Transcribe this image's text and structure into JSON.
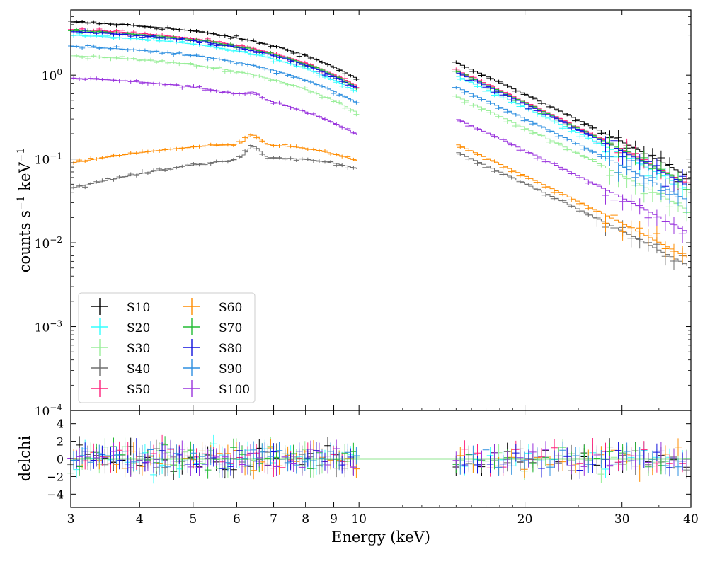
{
  "chart_data": {
    "type": "line",
    "title": "",
    "xlabel": "Energy (keV)",
    "ylabel_top": "counts s^{-1} keV^{-1}",
    "ylabel_bottom": "delchi",
    "xscale": "log",
    "xlim": [
      3,
      40
    ],
    "ylim_top": [
      0.0001,
      6
    ],
    "ylim_bottom": [
      -5.5,
      5.5
    ],
    "x_ticks": [
      3,
      4,
      5,
      6,
      7,
      8,
      9,
      10,
      20,
      30,
      40
    ],
    "x_tick_labels": [
      "3",
      "4",
      "5",
      "6",
      "7",
      "8",
      "9",
      "10",
      "20",
      "30",
      "40"
    ],
    "y_ticks_top": [
      {
        "value": 0.0001,
        "base": "10",
        "exp": "−4"
      },
      {
        "value": 0.001,
        "base": "10",
        "exp": "−3"
      },
      {
        "value": 0.01,
        "base": "10",
        "exp": "−2"
      },
      {
        "value": 0.1,
        "base": "10",
        "exp": "−1"
      },
      {
        "value": 1,
        "base": "10",
        "exp": "0"
      }
    ],
    "y_ticks_bottom": [
      {
        "value": 4,
        "label": "4"
      },
      {
        "value": 2,
        "label": "2"
      },
      {
        "value": 0,
        "label": "0"
      },
      {
        "value": -2,
        "label": "−2"
      },
      {
        "value": -4,
        "label": "−4"
      }
    ],
    "gap_keV": [
      10,
      15
    ],
    "model_line_color": "#22cc22",
    "legend": {
      "placement": "lower-left",
      "columns": 2
    },
    "series": [
      {
        "name": "S10",
        "color": "#000000",
        "norm_low": 4.3,
        "feat": 0.0,
        "iron": 0.0
      },
      {
        "name": "S20",
        "color": "#33ffff",
        "norm_low": 3.0,
        "feat": 0.0,
        "iron": 0.0
      },
      {
        "name": "S30",
        "color": "#99ee99",
        "norm_low": 1.7,
        "feat": 0.0,
        "iron": 0.0
      },
      {
        "name": "S40",
        "color": "#6e6e6e",
        "norm_low": 0.045,
        "feat": 1.75,
        "iron": 0.4
      },
      {
        "name": "S50",
        "color": "#ff1f7a",
        "norm_low": 3.5,
        "feat": 0.0,
        "iron": 0.0
      },
      {
        "name": "S60",
        "color": "#ff8c00",
        "norm_low": 0.09,
        "feat": 1.35,
        "iron": 0.3
      },
      {
        "name": "S70",
        "color": "#22bb33",
        "norm_low": 3.4,
        "feat": 0.0,
        "iron": 0.0
      },
      {
        "name": "S80",
        "color": "#1111dd",
        "norm_low": 3.3,
        "feat": 0.0,
        "iron": 0.0
      },
      {
        "name": "S90",
        "color": "#2e8fe0",
        "norm_low": 2.2,
        "feat": 0.0,
        "iron": 0.0
      },
      {
        "name": "S100",
        "color": "#9933dd",
        "norm_low": 0.92,
        "feat": 0.0,
        "iron": 0.15
      }
    ]
  }
}
